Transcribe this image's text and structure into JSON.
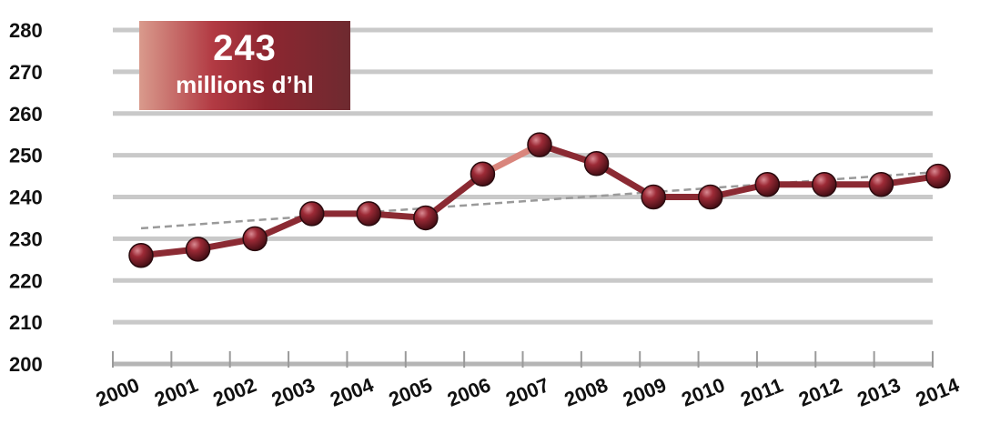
{
  "chart_data": {
    "type": "line",
    "title": "",
    "xlabel": "",
    "ylabel": "",
    "categories": [
      "2000",
      "2001",
      "2002",
      "2003",
      "2004",
      "2005",
      "2006",
      "2007",
      "2008",
      "2009",
      "2010",
      "2011",
      "2012",
      "2013",
      "2014"
    ],
    "series": [
      {
        "values": [
          226,
          227.5,
          230,
          236,
          236,
          235,
          245.5,
          252.5,
          248,
          240,
          240,
          243,
          243,
          243,
          245
        ]
      }
    ],
    "trendline": {
      "start": 232.5,
      "end": 246
    },
    "ylim": [
      200,
      280
    ],
    "yticks": [
      200,
      210,
      220,
      230,
      240,
      250,
      260,
      270,
      280
    ],
    "grid": true,
    "legend": "none",
    "colors": {
      "line": "#8b2a33",
      "marker": "#7a1c26",
      "grid": "#c9c9c9",
      "trend": "#9a9a9a"
    },
    "annotation": {
      "value": "243",
      "unit": "millions d’hl"
    }
  }
}
